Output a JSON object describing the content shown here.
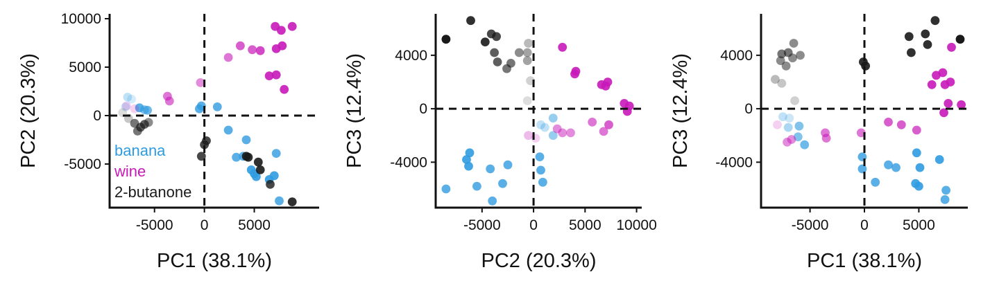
{
  "chart_data": [
    {
      "type": "scatter",
      "title": "",
      "xlabel": "PC1 (38.1%)",
      "ylabel": "PC2 (20.3%)",
      "xlim": [
        -9500,
        11500
      ],
      "ylim": [
        -9500,
        10500
      ],
      "xticks": [
        -5000,
        0,
        5000
      ],
      "xtick_labels": [
        "-5000",
        "0",
        "5000"
      ],
      "yticks": [
        -5000,
        0,
        5000,
        10000
      ],
      "ytick_labels": [
        "-5000",
        "0",
        "5000",
        "10000"
      ],
      "reference_lines": {
        "x": 0,
        "y": 0,
        "style": "dashed"
      },
      "legend": {
        "placement": "lower-left-inside",
        "entries": [
          "banana",
          "wine",
          "2-butanone"
        ]
      },
      "series": [
        {
          "name": "banana",
          "color": "#2f9be0",
          "points": [
            {
              "x": -7700,
              "y": 1900,
              "alpha": 0.3
            },
            {
              "x": -7300,
              "y": 1700,
              "alpha": 0.2
            },
            {
              "x": -7900,
              "y": 900,
              "alpha": 0.25
            },
            {
              "x": -6500,
              "y": 800,
              "alpha": 0.8
            },
            {
              "x": -6000,
              "y": 600,
              "alpha": 0.6
            },
            {
              "x": -5700,
              "y": 550,
              "alpha": 0.7
            },
            {
              "x": -500,
              "y": 700,
              "alpha": 0.8
            },
            {
              "x": -300,
              "y": 1000,
              "alpha": 0.8
            },
            {
              "x": 1300,
              "y": 900,
              "alpha": 0.8
            },
            {
              "x": 2400,
              "y": -1500,
              "alpha": 0.8
            },
            {
              "x": 4200,
              "y": -2500,
              "alpha": 0.8
            },
            {
              "x": 3200,
              "y": -4300,
              "alpha": 0.8
            },
            {
              "x": 3900,
              "y": -4200,
              "alpha": 0.8
            },
            {
              "x": 4700,
              "y": -5600,
              "alpha": 0.9
            },
            {
              "x": 5000,
              "y": -6000,
              "alpha": 0.9
            },
            {
              "x": 5200,
              "y": -6300,
              "alpha": 0.9
            },
            {
              "x": 6500,
              "y": -6600,
              "alpha": 0.9
            },
            {
              "x": 7200,
              "y": -3900,
              "alpha": 0.8
            },
            {
              "x": 7000,
              "y": -6200,
              "alpha": 0.9
            },
            {
              "x": 7500,
              "y": -8800,
              "alpha": 0.8
            }
          ]
        },
        {
          "name": "wine",
          "color": "#c81ab9",
          "points": [
            {
              "x": -7800,
              "y": 1000,
              "alpha": 0.2
            },
            {
              "x": -7000,
              "y": 700,
              "alpha": 0.2
            },
            {
              "x": -3700,
              "y": 2000,
              "alpha": 0.6
            },
            {
              "x": -3500,
              "y": 1500,
              "alpha": 0.6
            },
            {
              "x": -400,
              "y": 3400,
              "alpha": 0.5
            },
            {
              "x": 2400,
              "y": 6000,
              "alpha": 0.6
            },
            {
              "x": 3600,
              "y": 7200,
              "alpha": 0.7
            },
            {
              "x": 4800,
              "y": 6800,
              "alpha": 0.7
            },
            {
              "x": 5600,
              "y": 6700,
              "alpha": 0.8
            },
            {
              "x": 6500,
              "y": 4100,
              "alpha": 0.9
            },
            {
              "x": 7200,
              "y": 4200,
              "alpha": 0.9
            },
            {
              "x": 7200,
              "y": 6900,
              "alpha": 0.9
            },
            {
              "x": 7800,
              "y": 7200,
              "alpha": 0.9
            },
            {
              "x": 7100,
              "y": 9200,
              "alpha": 0.9
            },
            {
              "x": 7700,
              "y": 8800,
              "alpha": 0.9
            },
            {
              "x": 8800,
              "y": 9200,
              "alpha": 0.9
            },
            {
              "x": 8000,
              "y": 2700,
              "alpha": 0.9
            }
          ]
        },
        {
          "name": "2-butanone",
          "color": "#1a1a1a",
          "points": [
            {
              "x": -8200,
              "y": 300,
              "alpha": 0.15
            },
            {
              "x": -7600,
              "y": -300,
              "alpha": 0.25
            },
            {
              "x": -7000,
              "y": -800,
              "alpha": 0.6
            },
            {
              "x": -6700,
              "y": -1600,
              "alpha": 0.6
            },
            {
              "x": -6400,
              "y": -1200,
              "alpha": 0.7
            },
            {
              "x": -6000,
              "y": -900,
              "alpha": 0.7
            },
            {
              "x": -5600,
              "y": -700,
              "alpha": 0.5
            },
            {
              "x": -300,
              "y": -4200,
              "alpha": 0.8
            },
            {
              "x": 0,
              "y": -3000,
              "alpha": 0.8
            },
            {
              "x": 200,
              "y": -2600,
              "alpha": 0.8
            },
            {
              "x": 4200,
              "y": -4200,
              "alpha": 0.9
            },
            {
              "x": 4400,
              "y": -4300,
              "alpha": 0.9
            },
            {
              "x": 5600,
              "y": -5600,
              "alpha": 0.9
            },
            {
              "x": 5400,
              "y": -4800,
              "alpha": 0.9
            },
            {
              "x": 6600,
              "y": -7100,
              "alpha": 0.8
            },
            {
              "x": 8800,
              "y": -8900,
              "alpha": 0.9
            }
          ]
        }
      ]
    },
    {
      "type": "scatter",
      "title": "",
      "xlabel": "PC2 (20.3%)",
      "ylabel": "PC3 (12.4%)",
      "xlim": [
        -9500,
        10500
      ],
      "ylim": [
        -7400,
        7100
      ],
      "xticks": [
        -5000,
        0,
        5000,
        10000
      ],
      "xtick_labels": [
        "-5000",
        "0",
        "5000",
        "10000"
      ],
      "yticks": [
        -4000,
        0,
        4000
      ],
      "ytick_labels": [
        "-4000",
        "0",
        "4000"
      ],
      "reference_lines": {
        "x": 0,
        "y": 0,
        "style": "dashed"
      },
      "series": [
        {
          "name": "banana",
          "color": "#2f9be0",
          "points": [
            {
              "x": -8500,
              "y": -6000,
              "alpha": 0.8
            },
            {
              "x": -6200,
              "y": -3300,
              "alpha": 0.9
            },
            {
              "x": -6500,
              "y": -3800,
              "alpha": 0.9
            },
            {
              "x": -6300,
              "y": -4300,
              "alpha": 0.9
            },
            {
              "x": -4200,
              "y": -4500,
              "alpha": 0.8
            },
            {
              "x": -5500,
              "y": -5800,
              "alpha": 0.8
            },
            {
              "x": -2500,
              "y": -4200,
              "alpha": 0.8
            },
            {
              "x": -3000,
              "y": -5600,
              "alpha": 0.8
            },
            {
              "x": -4000,
              "y": -6900,
              "alpha": 0.8
            },
            {
              "x": 600,
              "y": -3600,
              "alpha": 0.8
            },
            {
              "x": 700,
              "y": -4600,
              "alpha": 0.8
            },
            {
              "x": 900,
              "y": -5500,
              "alpha": 0.8
            },
            {
              "x": 700,
              "y": -1200,
              "alpha": 0.3
            },
            {
              "x": 1100,
              "y": -1400,
              "alpha": 0.3
            },
            {
              "x": 1900,
              "y": -700,
              "alpha": 0.5
            },
            {
              "x": 1900,
              "y": -2000,
              "alpha": 0.5
            }
          ]
        },
        {
          "name": "wine",
          "color": "#c81ab9",
          "points": [
            {
              "x": 2800,
              "y": 4600,
              "alpha": 0.9
            },
            {
              "x": 4000,
              "y": 2600,
              "alpha": 0.9
            },
            {
              "x": 4100,
              "y": 2800,
              "alpha": 0.9
            },
            {
              "x": 6600,
              "y": 1800,
              "alpha": 0.9
            },
            {
              "x": 7200,
              "y": 2000,
              "alpha": 0.9
            },
            {
              "x": 7000,
              "y": 1700,
              "alpha": 0.9
            },
            {
              "x": 8800,
              "y": 400,
              "alpha": 0.9
            },
            {
              "x": 9300,
              "y": 200,
              "alpha": 0.9
            },
            {
              "x": 9100,
              "y": -200,
              "alpha": 0.9
            },
            {
              "x": 5700,
              "y": -1000,
              "alpha": 0.6
            },
            {
              "x": 6800,
              "y": -1700,
              "alpha": 0.6
            },
            {
              "x": 7300,
              "y": -1200,
              "alpha": 0.7
            },
            {
              "x": 2300,
              "y": -1500,
              "alpha": 0.5
            },
            {
              "x": 2800,
              "y": -1800,
              "alpha": 0.5
            },
            {
              "x": 3600,
              "y": -1800,
              "alpha": 0.5
            },
            {
              "x": -500,
              "y": -2000,
              "alpha": 0.3
            },
            {
              "x": 200,
              "y": -2200,
              "alpha": 0.2
            }
          ]
        },
        {
          "name": "2-butanone",
          "color": "#1a1a1a",
          "points": [
            {
              "x": -8500,
              "y": 5200,
              "alpha": 1.0
            },
            {
              "x": -6100,
              "y": 6600,
              "alpha": 0.9
            },
            {
              "x": -4700,
              "y": 5000,
              "alpha": 0.9
            },
            {
              "x": -4100,
              "y": 5600,
              "alpha": 0.8
            },
            {
              "x": -3600,
              "y": 5400,
              "alpha": 0.8
            },
            {
              "x": -3800,
              "y": 4200,
              "alpha": 0.7
            },
            {
              "x": -3500,
              "y": 3500,
              "alpha": 0.7
            },
            {
              "x": -2600,
              "y": 3000,
              "alpha": 0.6
            },
            {
              "x": -2200,
              "y": 3400,
              "alpha": 0.6
            },
            {
              "x": -1400,
              "y": 4200,
              "alpha": 0.5
            },
            {
              "x": -600,
              "y": 4200,
              "alpha": 0.4
            },
            {
              "x": -600,
              "y": 3600,
              "alpha": 0.4
            },
            {
              "x": -500,
              "y": 4900,
              "alpha": 0.3
            },
            {
              "x": -300,
              "y": 2100,
              "alpha": 0.2
            },
            {
              "x": -600,
              "y": 600,
              "alpha": 0.15
            }
          ]
        }
      ]
    },
    {
      "type": "scatter",
      "title": "",
      "xlabel": "PC1 (38.1%)",
      "ylabel": "PC3 (12.4%)",
      "xlim": [
        -9500,
        9500
      ],
      "ylim": [
        -7400,
        7100
      ],
      "xticks": [
        -5000,
        0,
        5000
      ],
      "xtick_labels": [
        "-5000",
        "0",
        "5000"
      ],
      "yticks": [
        -4000,
        0,
        4000
      ],
      "ytick_labels": [
        "-4000",
        "0",
        "4000"
      ],
      "reference_lines": {
        "x": 0,
        "y": 0,
        "style": "dashed"
      },
      "series": [
        {
          "name": "banana",
          "color": "#2f9be0",
          "points": [
            {
              "x": -7500,
              "y": -600,
              "alpha": 0.3
            },
            {
              "x": -6900,
              "y": -700,
              "alpha": 0.25
            },
            {
              "x": -7000,
              "y": -1400,
              "alpha": 0.4
            },
            {
              "x": -6000,
              "y": -1300,
              "alpha": 0.6
            },
            {
              "x": -6100,
              "y": -2100,
              "alpha": 0.6
            },
            {
              "x": -5500,
              "y": -2700,
              "alpha": 0.7
            },
            {
              "x": -200,
              "y": -3600,
              "alpha": 0.8
            },
            {
              "x": -200,
              "y": -4500,
              "alpha": 0.8
            },
            {
              "x": 1000,
              "y": -5500,
              "alpha": 0.8
            },
            {
              "x": 2200,
              "y": -4200,
              "alpha": 0.8
            },
            {
              "x": 2900,
              "y": -4400,
              "alpha": 0.8
            },
            {
              "x": 4800,
              "y": -3300,
              "alpha": 0.9
            },
            {
              "x": 5100,
              "y": -4400,
              "alpha": 0.9
            },
            {
              "x": 4700,
              "y": -5600,
              "alpha": 0.9
            },
            {
              "x": 5000,
              "y": -5800,
              "alpha": 0.9
            },
            {
              "x": 6900,
              "y": -3800,
              "alpha": 0.9
            },
            {
              "x": 7500,
              "y": -6100,
              "alpha": 0.8
            },
            {
              "x": 7400,
              "y": -6800,
              "alpha": 0.8
            }
          ]
        },
        {
          "name": "wine",
          "color": "#c81ab9",
          "points": [
            {
              "x": -8000,
              "y": -1200,
              "alpha": 0.2
            },
            {
              "x": -7100,
              "y": -2500,
              "alpha": 0.5
            },
            {
              "x": -6700,
              "y": -2300,
              "alpha": 0.5
            },
            {
              "x": -3600,
              "y": -1800,
              "alpha": 0.6
            },
            {
              "x": -3500,
              "y": -2200,
              "alpha": 0.6
            },
            {
              "x": -300,
              "y": -1800,
              "alpha": 0.6
            },
            {
              "x": 2200,
              "y": -1000,
              "alpha": 0.7
            },
            {
              "x": 3400,
              "y": -1200,
              "alpha": 0.7
            },
            {
              "x": 4800,
              "y": -1600,
              "alpha": 0.7
            },
            {
              "x": 6200,
              "y": 1800,
              "alpha": 0.9
            },
            {
              "x": 6600,
              "y": 2500,
              "alpha": 0.9
            },
            {
              "x": 7200,
              "y": 2700,
              "alpha": 0.9
            },
            {
              "x": 7400,
              "y": 1800,
              "alpha": 0.9
            },
            {
              "x": 7900,
              "y": 2000,
              "alpha": 0.9
            },
            {
              "x": 8000,
              "y": 4600,
              "alpha": 0.9
            },
            {
              "x": 7700,
              "y": 400,
              "alpha": 0.9
            },
            {
              "x": 8900,
              "y": 300,
              "alpha": 0.9
            },
            {
              "x": 7300,
              "y": -300,
              "alpha": 0.9
            }
          ]
        },
        {
          "name": "2-butanone",
          "color": "#1a1a1a",
          "points": [
            {
              "x": -7600,
              "y": 4100,
              "alpha": 0.6
            },
            {
              "x": -7000,
              "y": 4200,
              "alpha": 0.6
            },
            {
              "x": -6500,
              "y": 4900,
              "alpha": 0.5
            },
            {
              "x": -6600,
              "y": 3800,
              "alpha": 0.5
            },
            {
              "x": -5900,
              "y": 4000,
              "alpha": 0.5
            },
            {
              "x": -7700,
              "y": 3600,
              "alpha": 0.5
            },
            {
              "x": -7200,
              "y": 3200,
              "alpha": 0.5
            },
            {
              "x": -8200,
              "y": 2200,
              "alpha": 0.3
            },
            {
              "x": -7600,
              "y": 1900,
              "alpha": 0.25
            },
            {
              "x": -6400,
              "y": 600,
              "alpha": 0.2
            },
            {
              "x": -100,
              "y": 3500,
              "alpha": 0.9
            },
            {
              "x": 100,
              "y": 3200,
              "alpha": 0.9
            },
            {
              "x": 4100,
              "y": 5400,
              "alpha": 0.9
            },
            {
              "x": 4300,
              "y": 4200,
              "alpha": 0.9
            },
            {
              "x": 5600,
              "y": 5600,
              "alpha": 0.9
            },
            {
              "x": 5800,
              "y": 4800,
              "alpha": 0.9
            },
            {
              "x": 6500,
              "y": 6600,
              "alpha": 0.9
            },
            {
              "x": 8800,
              "y": 5200,
              "alpha": 1.0
            }
          ]
        }
      ]
    }
  ]
}
